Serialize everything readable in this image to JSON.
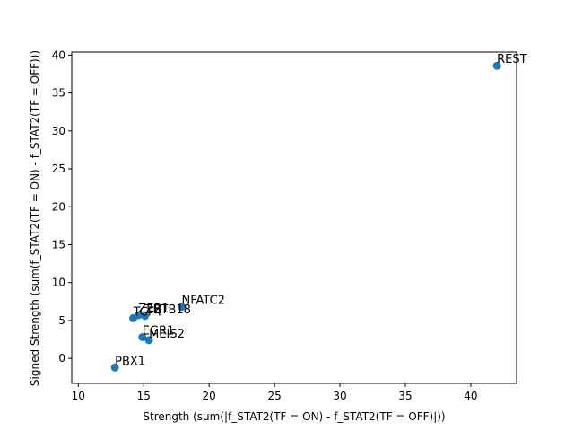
{
  "chart_data": {
    "type": "scatter",
    "title": "",
    "xlabel": "Strength (sum(|f_STAT2(TF = ON) - f_STAT2(TF = OFF)|))",
    "ylabel": "Signed Strength (sum(f_STAT2(TF = ON) - f_STAT2(TF = OFF)))",
    "xlim": [
      9.5,
      43.5
    ],
    "ylim": [
      -3.3,
      40.4
    ],
    "xticks": [
      10,
      15,
      20,
      25,
      30,
      35,
      40
    ],
    "yticks": [
      0,
      5,
      10,
      15,
      20,
      25,
      30,
      35,
      40
    ],
    "grid": false,
    "marker_color": "#1f77b4",
    "points": [
      {
        "label": "REST",
        "x": 42.0,
        "y": 38.6
      },
      {
        "label": "NFATC2",
        "x": 17.9,
        "y": 6.8
      },
      {
        "label": "ZEB1",
        "x": 14.6,
        "y": 5.7
      },
      {
        "label": "ZBTB18",
        "x": 15.1,
        "y": 5.6
      },
      {
        "label": "TCF4",
        "x": 14.2,
        "y": 5.3
      },
      {
        "label": "EGR1",
        "x": 14.9,
        "y": 2.8
      },
      {
        "label": "MEIS2",
        "x": 15.4,
        "y": 2.4
      },
      {
        "label": "PBX1",
        "x": 12.8,
        "y": -1.2
      }
    ]
  }
}
